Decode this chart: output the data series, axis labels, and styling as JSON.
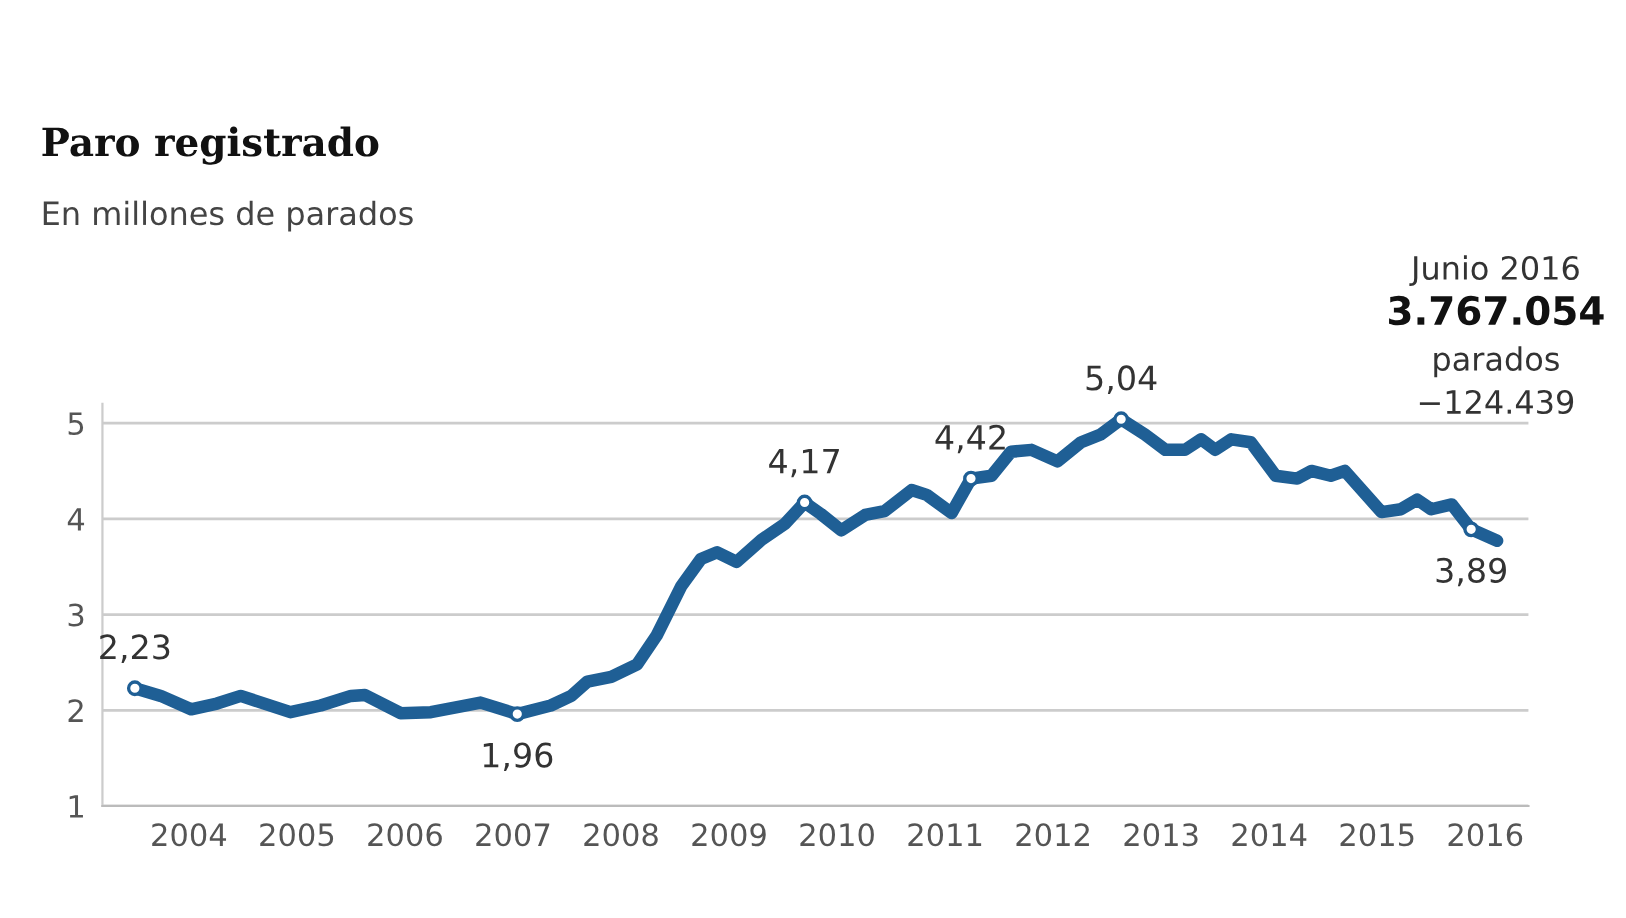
{
  "chart_data": {
    "type": "line",
    "title": "Paro registrado",
    "subtitle": "En millones de parados",
    "x": [
      2004.0,
      2004.24,
      2004.52,
      2004.76,
      2004.98,
      2005.44,
      2005.72,
      2006.0,
      2006.13,
      2006.46,
      2006.74,
      2007.02,
      2007.2,
      2007.54,
      2007.85,
      2008.04,
      2008.19,
      2008.41,
      2008.65,
      2008.83,
      2009.06,
      2009.24,
      2009.39,
      2009.57,
      2009.8,
      2010.02,
      2010.2,
      2010.35,
      2010.54,
      2010.76,
      2010.94,
      2011.19,
      2011.33,
      2011.56,
      2011.74,
      2011.93,
      2012.11,
      2012.3,
      2012.54,
      2012.76,
      2012.94,
      2013.13,
      2013.35,
      2013.54,
      2013.72,
      2013.87,
      2014.0,
      2014.15,
      2014.33,
      2014.56,
      2014.76,
      2014.89,
      2015.07,
      2015.2,
      2015.54,
      2015.72,
      2015.87,
      2016.0,
      2016.19,
      2016.37,
      2016.61
    ],
    "series": [
      {
        "color": "#1f5f95",
        "values": [
          2.23,
          2.15,
          2.01,
          2.07,
          2.15,
          1.98,
          2.05,
          2.15,
          2.16,
          1.97,
          1.98,
          2.04,
          2.08,
          1.96,
          2.05,
          2.15,
          2.3,
          2.35,
          2.48,
          2.78,
          3.3,
          3.58,
          3.65,
          3.55,
          3.78,
          3.95,
          4.17,
          4.05,
          3.88,
          4.04,
          4.08,
          4.3,
          4.25,
          4.06,
          4.42,
          4.45,
          4.7,
          4.72,
          4.6,
          4.8,
          4.88,
          5.04,
          4.88,
          4.72,
          4.72,
          4.83,
          4.72,
          4.83,
          4.8,
          4.45,
          4.42,
          4.5,
          4.45,
          4.5,
          4.07,
          4.1,
          4.2,
          4.1,
          4.15,
          3.89,
          3.77
        ]
      }
    ],
    "xlim": [
      2003.7,
      2016.9
    ],
    "ylim": [
      1,
      5.2
    ],
    "yticks": [
      1,
      2,
      3,
      4,
      5
    ],
    "xticks": [
      {
        "value": 2004.5,
        "label": "2004"
      },
      {
        "value": 2005.5,
        "label": "2005"
      },
      {
        "value": 2006.5,
        "label": "2006"
      },
      {
        "value": 2007.5,
        "label": "2007"
      },
      {
        "value": 2008.5,
        "label": "2008"
      },
      {
        "value": 2009.5,
        "label": "2009"
      },
      {
        "value": 2010.5,
        "label": "2010"
      },
      {
        "value": 2011.5,
        "label": "2011"
      },
      {
        "value": 2012.5,
        "label": "2012"
      },
      {
        "value": 2013.5,
        "label": "2013"
      },
      {
        "value": 2014.5,
        "label": "2014"
      },
      {
        "value": 2015.5,
        "label": "2015"
      },
      {
        "value": 2016.5,
        "label": "2016"
      }
    ],
    "grid": "y",
    "marker": "none",
    "line_style": "solid",
    "legend": false,
    "annotations": [
      {
        "text": "2,23",
        "x": 2004.0,
        "y": 2.23
      },
      {
        "text": "1,96",
        "x": 2007.54,
        "y": 1.96
      },
      {
        "text": "4,17",
        "x": 2010.2,
        "y": 4.17
      },
      {
        "text": "4,42",
        "x": 2011.74,
        "y": 4.42
      },
      {
        "text": "5,04",
        "x": 2013.13,
        "y": 5.04
      },
      {
        "text": "3,89",
        "x": 2016.37,
        "y": 3.89
      },
      "Junio 2016\n3.767.054\nparados\n−124.439"
    ]
  }
}
